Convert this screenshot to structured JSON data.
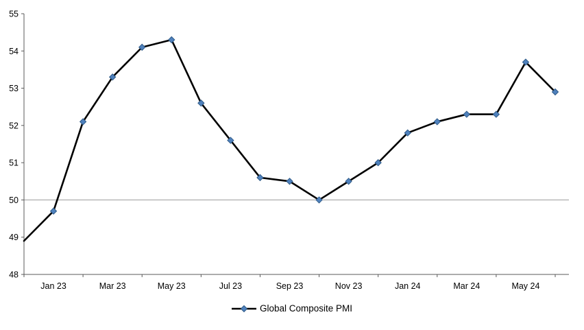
{
  "chart_data": {
    "type": "line",
    "title": "",
    "x": [
      "Dec 22",
      "Jan 23",
      "Feb 23",
      "Mar 23",
      "Apr 23",
      "May 23",
      "Jun 23",
      "Jul 23",
      "Aug 23",
      "Sep 23",
      "Oct 23",
      "Nov 23",
      "Dec 23",
      "Jan 24",
      "Feb 24",
      "Mar 24",
      "Apr 24",
      "May 24",
      "Jun 24"
    ],
    "series": [
      {
        "name": "Global Composite PMI",
        "values": [
          48.9,
          49.7,
          52.1,
          53.3,
          54.1,
          54.3,
          52.6,
          51.6,
          50.6,
          50.5,
          50.0,
          50.5,
          51.0,
          51.8,
          52.1,
          52.3,
          52.3,
          53.7,
          52.9
        ]
      }
    ],
    "x_tick_labels": [
      "Jan 23",
      "Mar 23",
      "May 23",
      "Jul 23",
      "Sep 23",
      "Nov 23",
      "Jan 24",
      "Mar 24",
      "May 24"
    ],
    "x_tick_indices": [
      1,
      3,
      5,
      7,
      9,
      11,
      13,
      15,
      17
    ],
    "y_ticks": [
      48,
      49,
      50,
      51,
      52,
      53,
      54,
      55
    ],
    "ylim": [
      48,
      55
    ],
    "reference_line_y": 50,
    "grid": false,
    "legend": {
      "label": "Global Composite PMI",
      "position": "bottom-center"
    },
    "colors": {
      "line": "#000000",
      "marker": "#4f81bd",
      "marker_outline": "#2f5a87",
      "reference_line": "#999999",
      "axis": "#595959",
      "text": "#000000"
    }
  }
}
